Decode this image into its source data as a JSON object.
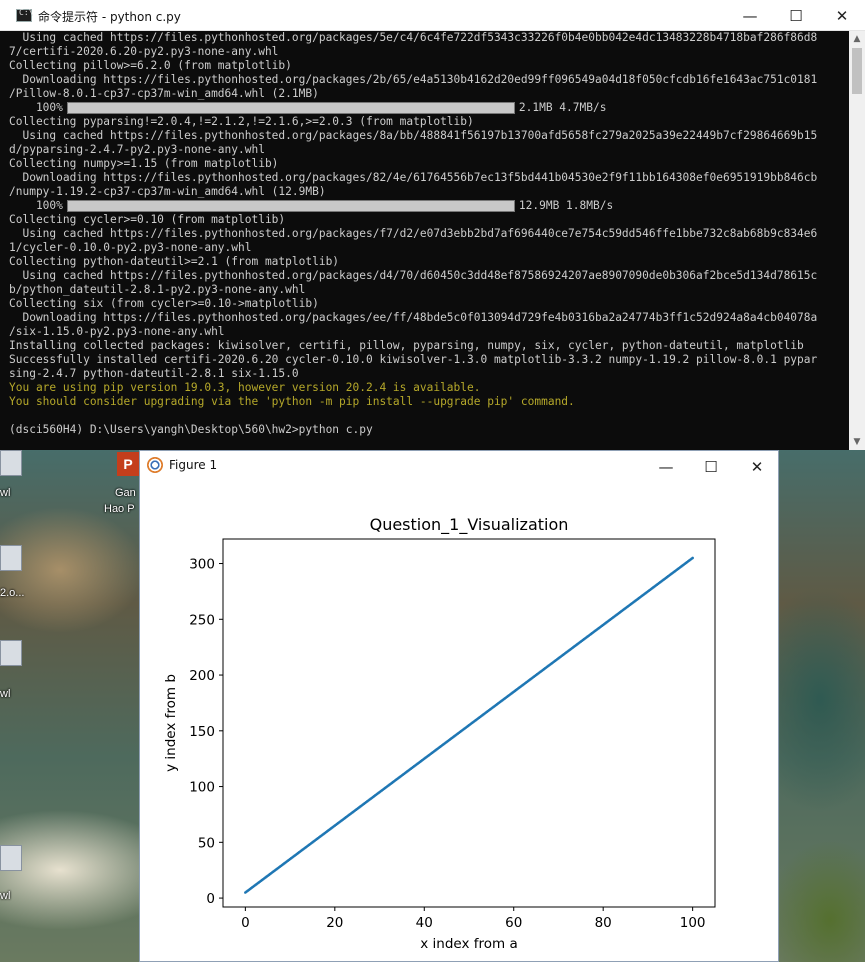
{
  "console": {
    "title": "命令提示符 - python  c.py",
    "lines": [
      {
        "text": "  Using cached https://files.pythonhosted.org/packages/5e/c4/6c4fe722df5343c33226f0b4e0bb042e4dc13483228b4718baf286f86d8",
        "kind": "normal"
      },
      {
        "text": "7/certifi-2020.6.20-py2.py3-none-any.whl",
        "kind": "normal"
      },
      {
        "text": "Collecting pillow>=6.2.0 (from matplotlib)",
        "kind": "normal"
      },
      {
        "text": "  Downloading https://files.pythonhosted.org/packages/2b/65/e4a5130b4162d20ed99ff096549a04d18f050cfcdb16fe1643ac751c0181",
        "kind": "normal"
      },
      {
        "text": "/Pillow-8.0.1-cp37-cp37m-win_amd64.whl (2.1MB)",
        "kind": "normal"
      },
      {
        "text": "    100%",
        "kind": "progress",
        "progress": 1.0,
        "tail": "2.1MB 4.7MB/s"
      },
      {
        "text": "Collecting pyparsing!=2.0.4,!=2.1.2,!=2.1.6,>=2.0.3 (from matplotlib)",
        "kind": "normal"
      },
      {
        "text": "  Using cached https://files.pythonhosted.org/packages/8a/bb/488841f56197b13700afd5658fc279a2025a39e22449b7cf29864669b15",
        "kind": "normal"
      },
      {
        "text": "d/pyparsing-2.4.7-py2.py3-none-any.whl",
        "kind": "normal"
      },
      {
        "text": "Collecting numpy>=1.15 (from matplotlib)",
        "kind": "normal"
      },
      {
        "text": "  Downloading https://files.pythonhosted.org/packages/82/4e/61764556b7ec13f5bd441b04530e2f9f11bb164308ef0e6951919bb846cb",
        "kind": "normal"
      },
      {
        "text": "/numpy-1.19.2-cp37-cp37m-win_amd64.whl (12.9MB)",
        "kind": "normal"
      },
      {
        "text": "    100%",
        "kind": "progress",
        "progress": 1.0,
        "tail": "12.9MB 1.8MB/s"
      },
      {
        "text": "Collecting cycler>=0.10 (from matplotlib)",
        "kind": "normal"
      },
      {
        "text": "  Using cached https://files.pythonhosted.org/packages/f7/d2/e07d3ebb2bd7af696440ce7e754c59dd546ffe1bbe732c8ab68b9c834e6",
        "kind": "normal"
      },
      {
        "text": "1/cycler-0.10.0-py2.py3-none-any.whl",
        "kind": "normal"
      },
      {
        "text": "Collecting python-dateutil>=2.1 (from matplotlib)",
        "kind": "normal"
      },
      {
        "text": "  Using cached https://files.pythonhosted.org/packages/d4/70/d60450c3dd48ef87586924207ae8907090de0b306af2bce5d134d78615c",
        "kind": "normal"
      },
      {
        "text": "b/python_dateutil-2.8.1-py2.py3-none-any.whl",
        "kind": "normal"
      },
      {
        "text": "Collecting six (from cycler>=0.10->matplotlib)",
        "kind": "normal"
      },
      {
        "text": "  Downloading https://files.pythonhosted.org/packages/ee/ff/48bde5c0f013094d729fe4b0316ba2a24774b3ff1c52d924a8a4cb04078a",
        "kind": "normal"
      },
      {
        "text": "/six-1.15.0-py2.py3-none-any.whl",
        "kind": "normal"
      },
      {
        "text": "Installing collected packages: kiwisolver, certifi, pillow, pyparsing, numpy, six, cycler, python-dateutil, matplotlib",
        "kind": "normal"
      },
      {
        "text": "Successfully installed certifi-2020.6.20 cycler-0.10.0 kiwisolver-1.3.0 matplotlib-3.3.2 numpy-1.19.2 pillow-8.0.1 pypar",
        "kind": "normal"
      },
      {
        "text": "sing-2.4.7 python-dateutil-2.8.1 six-1.15.0",
        "kind": "normal"
      },
      {
        "text": "You are using pip version 19.0.3, however version 20.2.4 is available.",
        "kind": "warn"
      },
      {
        "text": "You should consider upgrading via the 'python -m pip install --upgrade pip' command.",
        "kind": "warn"
      },
      {
        "text": "",
        "kind": "spacer"
      },
      {
        "text": "(dsci560H4) D:\\Users\\yangh\\Desktop\\560\\hw2>python c.py",
        "kind": "normal"
      }
    ]
  },
  "desktop": {
    "icon_labels": [
      "wl",
      "2.o...",
      "wl",
      "wl"
    ],
    "ppt_label_1": "Gan",
    "ppt_label_2": "Hao P",
    "ppt_letter": "P"
  },
  "figure": {
    "window_title": "Figure 1"
  },
  "chart_data": {
    "type": "scatter",
    "title": "Question_1_Visualization",
    "xlabel": "x index from a",
    "ylabel": "y index from b",
    "xlim": [
      -5,
      105
    ],
    "ylim": [
      -8,
      322
    ],
    "xticks": [
      0,
      20,
      40,
      60,
      80,
      100
    ],
    "yticks": [
      0,
      50,
      100,
      150,
      200,
      250,
      300
    ],
    "series_color": "#1f77b4",
    "relation": "y = 3x + 5, dense points for x from 0 to 100",
    "x_range": [
      0,
      100
    ],
    "y_range": [
      5,
      305
    ],
    "grid": false
  }
}
